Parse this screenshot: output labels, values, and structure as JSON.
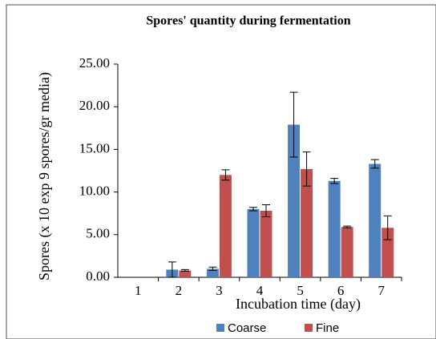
{
  "chart_data": {
    "type": "bar",
    "title": "Spores' quantity during fermentation",
    "x_label": "Incubation time  (day)",
    "y_label": "Spores (x 10 exp 9 spores/gr media)",
    "categories": [
      "1",
      "2",
      "3",
      "4",
      "5",
      "6",
      "7"
    ],
    "series": [
      {
        "name": "Coarse",
        "color": "#4f81bd",
        "values": [
          0,
          0.9,
          1.0,
          8.0,
          17.9,
          11.3,
          13.3
        ],
        "errors": [
          0,
          0.9,
          0.2,
          0.2,
          3.8,
          0.3,
          0.5
        ]
      },
      {
        "name": "Fine",
        "color": "#c0504d",
        "values": [
          0,
          0.8,
          12.0,
          7.8,
          12.7,
          5.9,
          5.8
        ],
        "errors": [
          0,
          0.1,
          0.6,
          0.7,
          2.0,
          0.1,
          1.4
        ]
      }
    ],
    "ylim": [
      0,
      25
    ],
    "yticks": [
      {
        "value": 0,
        "label": "0.00"
      },
      {
        "value": 5,
        "label": "5.00"
      },
      {
        "value": 10,
        "label": "10.00"
      },
      {
        "value": 15,
        "label": "15.00"
      },
      {
        "value": 20,
        "label": "20.00"
      },
      {
        "value": 25,
        "label": "25.00"
      }
    ],
    "legend": "bottom"
  }
}
